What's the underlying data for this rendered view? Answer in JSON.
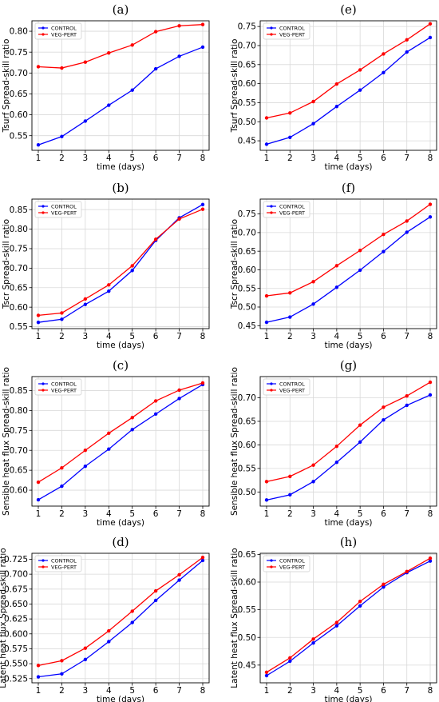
{
  "chart_data": [
    {
      "type": "line",
      "panel_label": "(a)",
      "x": [
        1,
        2,
        3,
        4,
        5,
        6,
        7,
        8
      ],
      "xlabel": "time (days)",
      "ylabel": "Tsurf Spread-skill ratio",
      "ylim": [
        0.515,
        0.825
      ],
      "yticks": [
        "0.55",
        "0.60",
        "0.65",
        "0.70",
        "0.75",
        "0.80"
      ],
      "yticks_values": [
        0.55,
        0.6,
        0.65,
        0.7,
        0.75,
        0.8
      ],
      "legend": "upper-left",
      "grid": true,
      "series": [
        {
          "name": "CONTROL",
          "color": "#0000ff",
          "values": [
            0.528,
            0.548,
            0.585,
            0.623,
            0.659,
            0.71,
            0.74,
            0.762
          ]
        },
        {
          "name": "VEG-PERT",
          "color": "#ff0000",
          "values": [
            0.715,
            0.712,
            0.726,
            0.748,
            0.767,
            0.799,
            0.813,
            0.816
          ]
        }
      ]
    },
    {
      "type": "line",
      "panel_label": "(e)",
      "x": [
        1,
        2,
        3,
        4,
        5,
        6,
        7,
        8
      ],
      "xlabel": "time (days)",
      "ylabel": "Tsurf Spread-skill ratio",
      "ylim": [
        0.425,
        0.765
      ],
      "yticks": [
        "0.45",
        "0.50",
        "0.55",
        "0.60",
        "0.65",
        "0.70",
        "0.75"
      ],
      "yticks_values": [
        0.45,
        0.5,
        0.55,
        0.6,
        0.65,
        0.7,
        0.75
      ],
      "legend": "upper-left",
      "grid": true,
      "series": [
        {
          "name": "CONTROL",
          "color": "#0000ff",
          "values": [
            0.441,
            0.459,
            0.495,
            0.54,
            0.583,
            0.629,
            0.683,
            0.721
          ]
        },
        {
          "name": "VEG-PERT",
          "color": "#ff0000",
          "values": [
            0.51,
            0.523,
            0.553,
            0.599,
            0.636,
            0.678,
            0.715,
            0.757
          ]
        }
      ]
    },
    {
      "type": "line",
      "panel_label": "(b)",
      "x": [
        1,
        2,
        3,
        4,
        5,
        6,
        7,
        8
      ],
      "xlabel": "time (days)",
      "ylabel": "Tscr Spread-skill ratio",
      "ylim": [
        0.545,
        0.877
      ],
      "yticks": [
        "0.55",
        "0.60",
        "0.65",
        "0.70",
        "0.75",
        "0.80",
        "0.85"
      ],
      "yticks_values": [
        0.55,
        0.6,
        0.65,
        0.7,
        0.75,
        0.8,
        0.85
      ],
      "legend": "upper-left",
      "grid": true,
      "series": [
        {
          "name": "CONTROL",
          "color": "#0000ff",
          "values": [
            0.561,
            0.569,
            0.607,
            0.641,
            0.694,
            0.771,
            0.829,
            0.863
          ]
        },
        {
          "name": "VEG-PERT",
          "color": "#ff0000",
          "values": [
            0.579,
            0.585,
            0.621,
            0.657,
            0.706,
            0.774,
            0.826,
            0.851
          ]
        }
      ]
    },
    {
      "type": "line",
      "panel_label": "(f)",
      "x": [
        1,
        2,
        3,
        4,
        5,
        6,
        7,
        8
      ],
      "xlabel": "time (days)",
      "ylabel": "Tscr Spread-skill ratio",
      "ylim": [
        0.442,
        0.79
      ],
      "yticks": [
        "0.45",
        "0.50",
        "0.55",
        "0.60",
        "0.65",
        "0.70",
        "0.75"
      ],
      "yticks_values": [
        0.45,
        0.5,
        0.55,
        0.6,
        0.65,
        0.7,
        0.75
      ],
      "legend": "upper-left",
      "grid": true,
      "series": [
        {
          "name": "CONTROL",
          "color": "#0000ff",
          "values": [
            0.459,
            0.473,
            0.508,
            0.553,
            0.599,
            0.649,
            0.701,
            0.742
          ]
        },
        {
          "name": "VEG-PERT",
          "color": "#ff0000",
          "values": [
            0.53,
            0.538,
            0.568,
            0.611,
            0.652,
            0.695,
            0.731,
            0.776
          ]
        }
      ]
    },
    {
      "type": "line",
      "panel_label": "(c)",
      "x": [
        1,
        2,
        3,
        4,
        5,
        6,
        7,
        8
      ],
      "xlabel": "time (days)",
      "ylabel": "Sensible heat flux Spread-skill ratio",
      "ylim": [
        0.56,
        0.885
      ],
      "yticks": [
        "0.60",
        "0.65",
        "0.70",
        "0.75",
        "0.80",
        "0.85"
      ],
      "yticks_values": [
        0.6,
        0.65,
        0.7,
        0.75,
        0.8,
        0.85
      ],
      "legend": "upper-left",
      "grid": true,
      "series": [
        {
          "name": "CONTROL",
          "color": "#0000ff",
          "values": [
            0.576,
            0.61,
            0.66,
            0.703,
            0.752,
            0.791,
            0.83,
            0.865
          ]
        },
        {
          "name": "VEG-PERT",
          "color": "#ff0000",
          "values": [
            0.62,
            0.656,
            0.7,
            0.743,
            0.782,
            0.824,
            0.851,
            0.869
          ]
        }
      ]
    },
    {
      "type": "line",
      "panel_label": "(g)",
      "x": [
        1,
        2,
        3,
        4,
        5,
        6,
        7,
        8
      ],
      "xlabel": "time (days)",
      "ylabel": "Sensible heat flux Spread-skill ratio",
      "ylim": [
        0.47,
        0.745
      ],
      "yticks": [
        "0.50",
        "0.55",
        "0.60",
        "0.65",
        "0.70"
      ],
      "yticks_values": [
        0.5,
        0.55,
        0.6,
        0.65,
        0.7
      ],
      "legend": "upper-left",
      "grid": true,
      "series": [
        {
          "name": "CONTROL",
          "color": "#0000ff",
          "values": [
            0.483,
            0.494,
            0.522,
            0.563,
            0.606,
            0.653,
            0.684,
            0.706
          ]
        },
        {
          "name": "VEG-PERT",
          "color": "#ff0000",
          "values": [
            0.522,
            0.533,
            0.557,
            0.597,
            0.642,
            0.68,
            0.704,
            0.733
          ]
        }
      ]
    },
    {
      "type": "line",
      "panel_label": "(d)",
      "x": [
        1,
        2,
        3,
        4,
        5,
        6,
        7,
        8
      ],
      "xlabel": "time (days)",
      "ylabel": "Latent heat flux Spread-skill ratio",
      "ylim": [
        0.518,
        0.735
      ],
      "yticks": [
        "0.525",
        "0.550",
        "0.575",
        "0.600",
        "0.625",
        "0.650",
        "0.675",
        "0.700",
        "0.725"
      ],
      "yticks_values": [
        0.525,
        0.55,
        0.575,
        0.6,
        0.625,
        0.65,
        0.675,
        0.7,
        0.725
      ],
      "legend": "upper-left",
      "grid": true,
      "series": [
        {
          "name": "CONTROL",
          "color": "#0000ff",
          "values": [
            0.528,
            0.533,
            0.557,
            0.587,
            0.619,
            0.656,
            0.69,
            0.723
          ]
        },
        {
          "name": "VEG-PERT",
          "color": "#ff0000",
          "values": [
            0.547,
            0.555,
            0.576,
            0.605,
            0.638,
            0.672,
            0.699,
            0.728
          ]
        }
      ]
    },
    {
      "type": "line",
      "panel_label": "(h)",
      "x": [
        1,
        2,
        3,
        4,
        5,
        6,
        7,
        8
      ],
      "xlabel": "time (days)",
      "ylabel": "Latent heat flux Spread-skill ratio",
      "ylim": [
        0.418,
        0.652
      ],
      "yticks": [
        "0.45",
        "0.50",
        "0.55",
        "0.60",
        "0.65"
      ],
      "yticks_values": [
        0.45,
        0.5,
        0.55,
        0.6,
        0.65
      ],
      "legend": "upper-left",
      "grid": true,
      "series": [
        {
          "name": "CONTROL",
          "color": "#0000ff",
          "values": [
            0.431,
            0.457,
            0.49,
            0.521,
            0.557,
            0.591,
            0.617,
            0.638
          ]
        },
        {
          "name": "VEG-PERT",
          "color": "#ff0000",
          "values": [
            0.437,
            0.463,
            0.497,
            0.527,
            0.565,
            0.596,
            0.619,
            0.643
          ]
        }
      ]
    }
  ]
}
